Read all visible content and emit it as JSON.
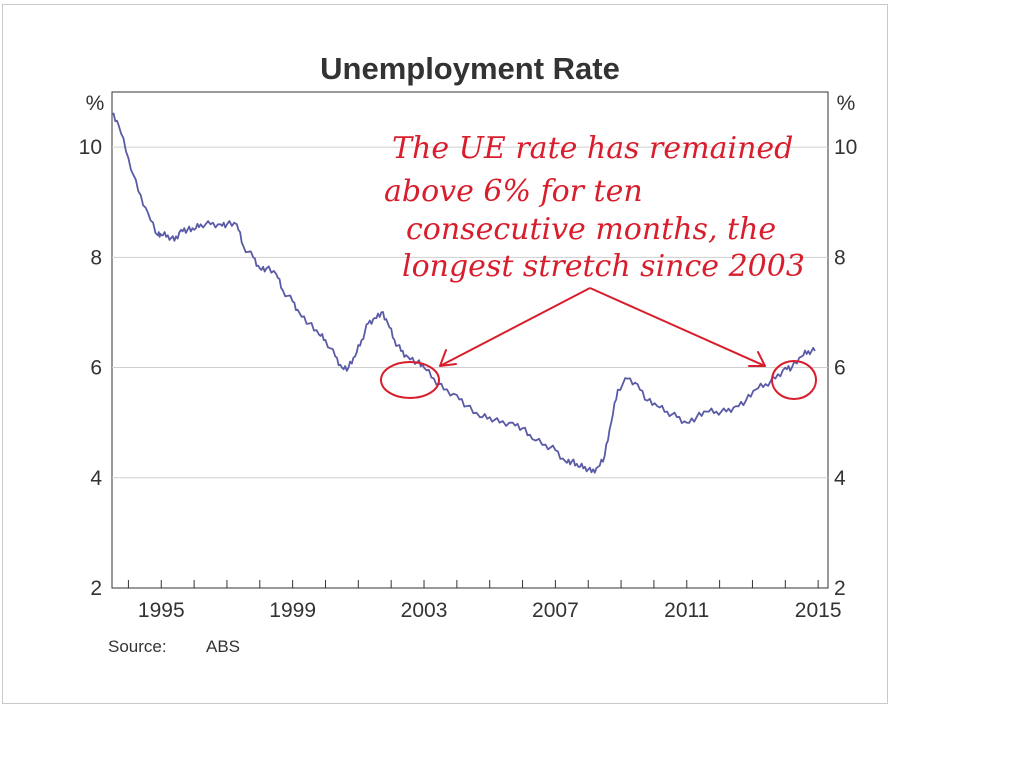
{
  "chart_data": {
    "type": "line",
    "title": "Unemployment Rate",
    "y_unit_left": "%",
    "y_unit_right": "%",
    "ylim": [
      2,
      11
    ],
    "xlim": [
      1993.5,
      2015.3
    ],
    "yticks": [
      2,
      4,
      6,
      8,
      10
    ],
    "xtick_labels": [
      "1995",
      "1999",
      "2003",
      "2007",
      "2011",
      "2015"
    ],
    "xtick_values": [
      1995,
      1999,
      2003,
      2007,
      2011,
      2015
    ],
    "grid": true,
    "line_color": "#5a5aa6",
    "series": [
      {
        "x": [
          1993.5,
          1993.7,
          1994.0,
          1994.3,
          1994.6,
          1994.9,
          1995.0,
          1995.2,
          1995.4,
          1995.6,
          1995.8,
          1996.0,
          1996.2,
          1996.5,
          1996.8,
          1997.0,
          1997.3,
          1997.5,
          1997.8,
          1998.0,
          1998.2,
          1998.5,
          1998.7,
          1999.0,
          1999.2,
          1999.5,
          1999.8,
          2000.0,
          2000.3,
          2000.5,
          2000.7,
          2000.9,
          2001.1,
          2001.3,
          2001.5,
          2001.7,
          2001.9,
          2002.1,
          2002.3,
          2002.5,
          2002.8,
          2003.0,
          2003.3,
          2003.6,
          2004.0,
          2004.3,
          2004.7,
          2005.0,
          2005.3,
          2005.7,
          2006.0,
          2006.3,
          2006.7,
          2007.0,
          2007.3,
          2007.5,
          2007.7,
          2007.9,
          2008.1,
          2008.3,
          2008.5,
          2008.7,
          2008.9,
          2009.2,
          2009.5,
          2009.8,
          2010.1,
          2010.4,
          2010.7,
          2011.0,
          2011.3,
          2011.6,
          2011.9,
          2012.2,
          2012.5,
          2012.8,
          2013.1,
          2013.4,
          2013.7,
          2014.0,
          2014.2,
          2014.5,
          2014.7,
          2014.9
        ],
        "y": [
          10.6,
          10.4,
          9.8,
          9.2,
          8.8,
          8.4,
          8.4,
          8.4,
          8.3,
          8.5,
          8.5,
          8.5,
          8.6,
          8.6,
          8.6,
          8.6,
          8.6,
          8.2,
          8.0,
          7.8,
          7.8,
          7.7,
          7.4,
          7.2,
          7.0,
          6.8,
          6.6,
          6.5,
          6.2,
          6.0,
          6.0,
          6.2,
          6.5,
          6.8,
          6.9,
          7.0,
          6.8,
          6.5,
          6.3,
          6.2,
          6.1,
          6.0,
          5.8,
          5.6,
          5.5,
          5.3,
          5.1,
          5.1,
          5.0,
          5.0,
          4.9,
          4.7,
          4.6,
          4.5,
          4.3,
          4.3,
          4.2,
          4.2,
          4.1,
          4.2,
          4.4,
          5.0,
          5.6,
          5.8,
          5.7,
          5.4,
          5.3,
          5.2,
          5.1,
          5.0,
          5.1,
          5.2,
          5.2,
          5.2,
          5.3,
          5.4,
          5.6,
          5.7,
          5.8,
          6.0,
          6.0,
          6.2,
          6.3,
          6.3
        ]
      }
    ],
    "annotations": [
      "The UE rate has remained",
      "above 6% for ten",
      "consecutive months, the",
      "longest stretch since 2003"
    ],
    "annotation_color": "#d81e2c",
    "source_label": "Source:",
    "source_value": "ABS"
  }
}
